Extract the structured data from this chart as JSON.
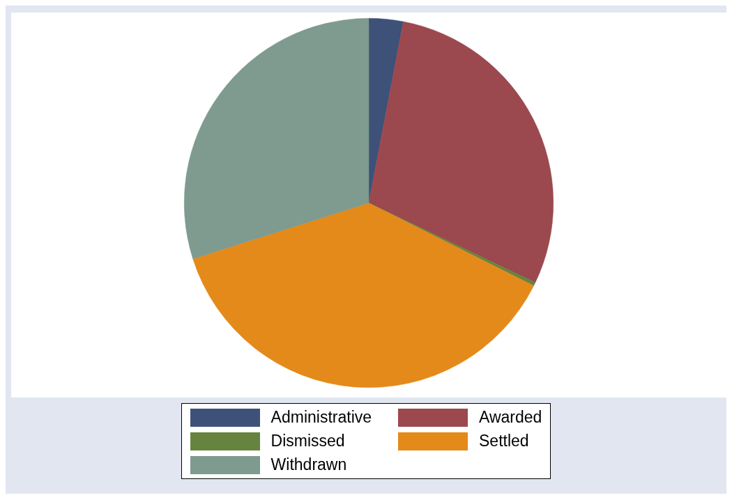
{
  "chart_data": {
    "type": "pie",
    "categories": [
      "Administrative",
      "Awarded",
      "Dismissed",
      "Settled",
      "Withdrawn"
    ],
    "values": [
      3.0,
      29.1,
      0.3,
      37.7,
      29.9
    ],
    "colors": [
      "#3e5179",
      "#9b484e",
      "#66843f",
      "#e38a1a",
      "#7f9a8f"
    ],
    "legend": "bottom"
  }
}
